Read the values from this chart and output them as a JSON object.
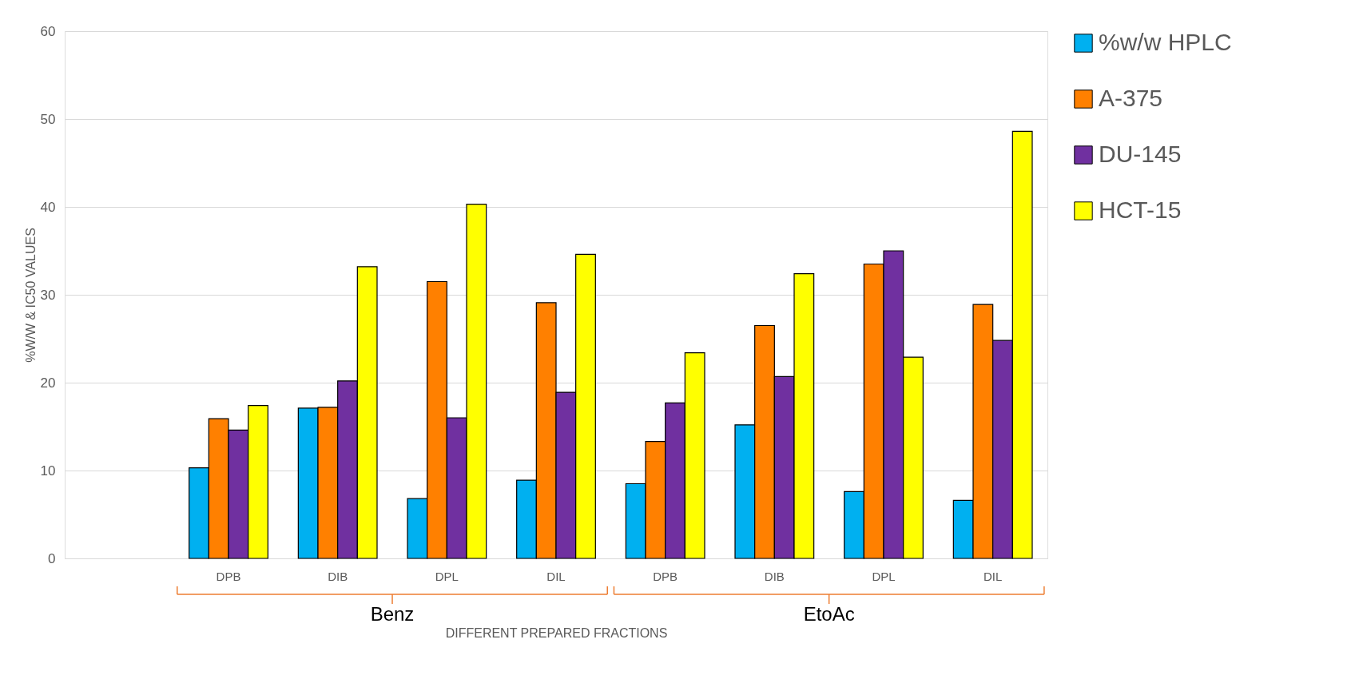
{
  "chart_data": {
    "type": "bar",
    "xlabel": "DIFFERENT PREPARED FRACTIONS",
    "ylabel": "%W/W & IC50 VALUES",
    "categories": [
      null,
      "DPB",
      "DIB",
      "DPL",
      "DIL",
      "DPB",
      "DIB",
      "DPL",
      "DIL"
    ],
    "series": [
      {
        "name": "%w/w HPLC",
        "color": "#00b0f0",
        "values": [
          null,
          10.3,
          17.1,
          6.8,
          8.9,
          8.5,
          15.2,
          7.6,
          6.6
        ]
      },
      {
        "name": "A-375",
        "color": "#ff8000",
        "values": [
          null,
          15.9,
          17.2,
          31.5,
          29.1,
          13.3,
          26.5,
          33.5,
          28.9
        ]
      },
      {
        "name": "DU-145",
        "color": "#7030a0",
        "values": [
          null,
          14.6,
          20.2,
          16.0,
          18.9,
          17.7,
          20.7,
          35.0,
          24.8
        ]
      },
      {
        "name": "HCT-15",
        "color": "#ffff00",
        "values": [
          null,
          17.4,
          33.2,
          40.3,
          34.6,
          23.4,
          32.4,
          22.9,
          48.6
        ]
      }
    ],
    "ylim": [
      0,
      60
    ],
    "yticks": [
      0,
      10,
      20,
      30,
      40,
      50,
      60
    ],
    "grid": "y",
    "legend": "right",
    "annotations": [
      "Benz",
      "EtoAc"
    ]
  }
}
